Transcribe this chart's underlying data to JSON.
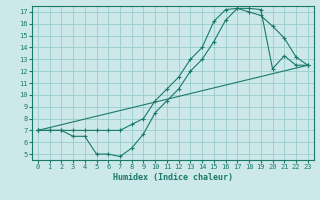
{
  "title": "",
  "xlabel": "Humidex (Indice chaleur)",
  "ylabel": "",
  "bg_color": "#cce8e8",
  "grid_color": "#99cccc",
  "line_color": "#1a7a6a",
  "spine_color": "#1a7a6a",
  "xlim": [
    -0.5,
    23.5
  ],
  "ylim": [
    4.5,
    17.5
  ],
  "xticks": [
    0,
    1,
    2,
    3,
    4,
    5,
    6,
    7,
    8,
    9,
    10,
    11,
    12,
    13,
    14,
    15,
    16,
    17,
    18,
    19,
    20,
    21,
    22,
    23
  ],
  "yticks": [
    5,
    6,
    7,
    8,
    9,
    10,
    11,
    12,
    13,
    14,
    15,
    16,
    17
  ],
  "line1_x": [
    0,
    1,
    2,
    3,
    4,
    5,
    6,
    7,
    8,
    9,
    10,
    11,
    12,
    13,
    14,
    15,
    16,
    17,
    18,
    19,
    20,
    21,
    22,
    23
  ],
  "line1_y": [
    7,
    7,
    7,
    6.5,
    6.5,
    5.0,
    5.0,
    4.8,
    5.5,
    6.7,
    8.5,
    9.5,
    10.5,
    12.0,
    13.0,
    14.5,
    16.3,
    17.3,
    17.0,
    16.7,
    15.8,
    14.8,
    13.2,
    12.5
  ],
  "line2_x": [
    0,
    1,
    2,
    3,
    4,
    5,
    6,
    7,
    8,
    9,
    10,
    11,
    12,
    13,
    14,
    15,
    16,
    17,
    18,
    19,
    20,
    21,
    22,
    23
  ],
  "line2_y": [
    7,
    7,
    7,
    7,
    7,
    7.0,
    7.0,
    7.0,
    7.5,
    8.0,
    9.5,
    10.5,
    11.5,
    13.0,
    14.0,
    16.2,
    17.2,
    17.3,
    17.3,
    17.2,
    12.2,
    13.3,
    12.5,
    12.5
  ],
  "line3_x": [
    0,
    23
  ],
  "line3_y": [
    7,
    12.5
  ],
  "tick_fontsize": 5,
  "xlabel_fontsize": 6,
  "marker_size": 2.5,
  "linewidth": 0.8
}
